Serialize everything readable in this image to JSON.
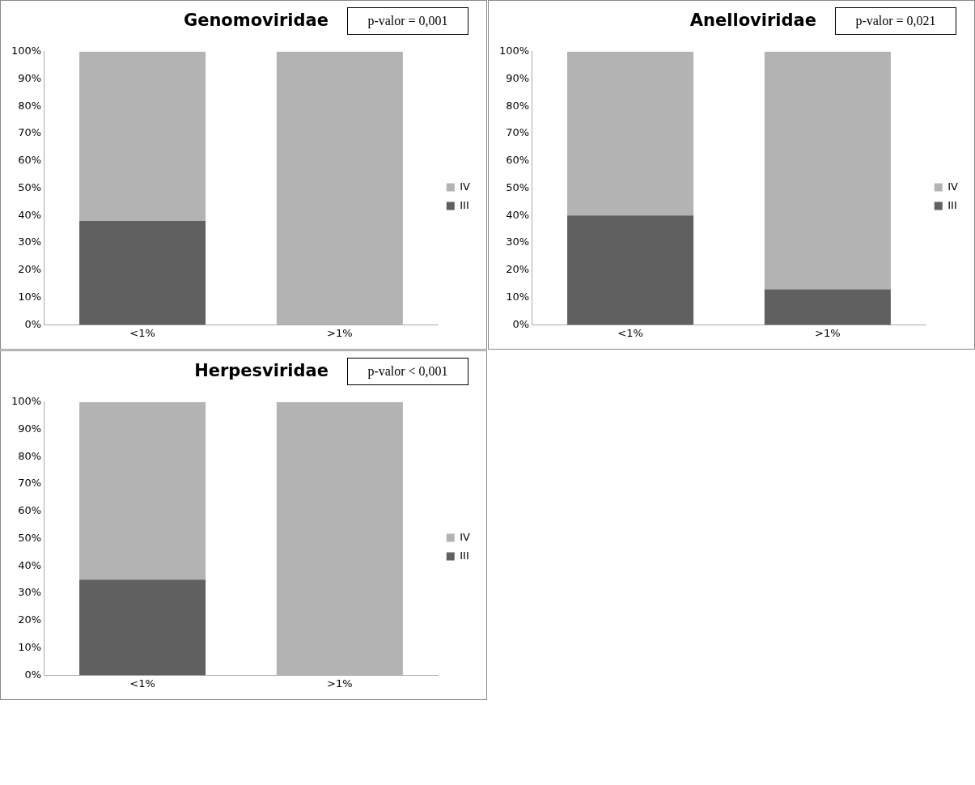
{
  "chart_data": [
    {
      "type": "bar",
      "title": "Genomoviridae",
      "annotations": [
        "p-valor = 0,001"
      ],
      "categories": [
        "<1%",
        ">1%"
      ],
      "stacked": true,
      "legend": "right",
      "grid": false,
      "series": [
        {
          "name": "III",
          "color": "#606060",
          "values": [
            38,
            0
          ]
        },
        {
          "name": "IV",
          "color": "#b3b3b3",
          "values": [
            62,
            100
          ]
        }
      ],
      "ylim": [
        0,
        100
      ],
      "yticks": [
        {
          "value": 0,
          "label": "0%"
        },
        {
          "value": 10,
          "label": "10%"
        },
        {
          "value": 20,
          "label": "20%"
        },
        {
          "value": 30,
          "label": "30%"
        },
        {
          "value": 40,
          "label": "40%"
        },
        {
          "value": 50,
          "label": "50%"
        },
        {
          "value": 60,
          "label": "60%"
        },
        {
          "value": 70,
          "label": "70%"
        },
        {
          "value": 80,
          "label": "80%"
        },
        {
          "value": 90,
          "label": "90%"
        },
        {
          "value": 100,
          "label": "100%"
        }
      ]
    },
    {
      "type": "bar",
      "title": "Anelloviridae",
      "annotations": [
        "p-valor = 0,021"
      ],
      "categories": [
        "<1%",
        ">1%"
      ],
      "stacked": true,
      "legend": "right",
      "grid": false,
      "series": [
        {
          "name": "III",
          "color": "#606060",
          "values": [
            40,
            13
          ]
        },
        {
          "name": "IV",
          "color": "#b3b3b3",
          "values": [
            60,
            87
          ]
        }
      ],
      "ylim": [
        0,
        100
      ],
      "yticks": [
        {
          "value": 0,
          "label": "0%"
        },
        {
          "value": 10,
          "label": "10%"
        },
        {
          "value": 20,
          "label": "20%"
        },
        {
          "value": 30,
          "label": "30%"
        },
        {
          "value": 40,
          "label": "40%"
        },
        {
          "value": 50,
          "label": "50%"
        },
        {
          "value": 60,
          "label": "60%"
        },
        {
          "value": 70,
          "label": "70%"
        },
        {
          "value": 80,
          "label": "80%"
        },
        {
          "value": 90,
          "label": "90%"
        },
        {
          "value": 100,
          "label": "100%"
        }
      ]
    },
    {
      "type": "bar",
      "title": "Herpesviridae",
      "annotations": [
        "p-valor < 0,001"
      ],
      "categories": [
        "<1%",
        ">1%"
      ],
      "stacked": true,
      "legend": "right",
      "grid": false,
      "series": [
        {
          "name": "III",
          "color": "#606060",
          "values": [
            35,
            0
          ]
        },
        {
          "name": "IV",
          "color": "#b3b3b3",
          "values": [
            65,
            100
          ]
        }
      ],
      "ylim": [
        0,
        100
      ],
      "yticks": [
        {
          "value": 0,
          "label": "0%"
        },
        {
          "value": 10,
          "label": "10%"
        },
        {
          "value": 20,
          "label": "20%"
        },
        {
          "value": 30,
          "label": "30%"
        },
        {
          "value": 40,
          "label": "40%"
        },
        {
          "value": 50,
          "label": "50%"
        },
        {
          "value": 60,
          "label": "60%"
        },
        {
          "value": 70,
          "label": "70%"
        },
        {
          "value": 80,
          "label": "80%"
        },
        {
          "value": 90,
          "label": "90%"
        },
        {
          "value": 100,
          "label": "100%"
        }
      ]
    }
  ]
}
